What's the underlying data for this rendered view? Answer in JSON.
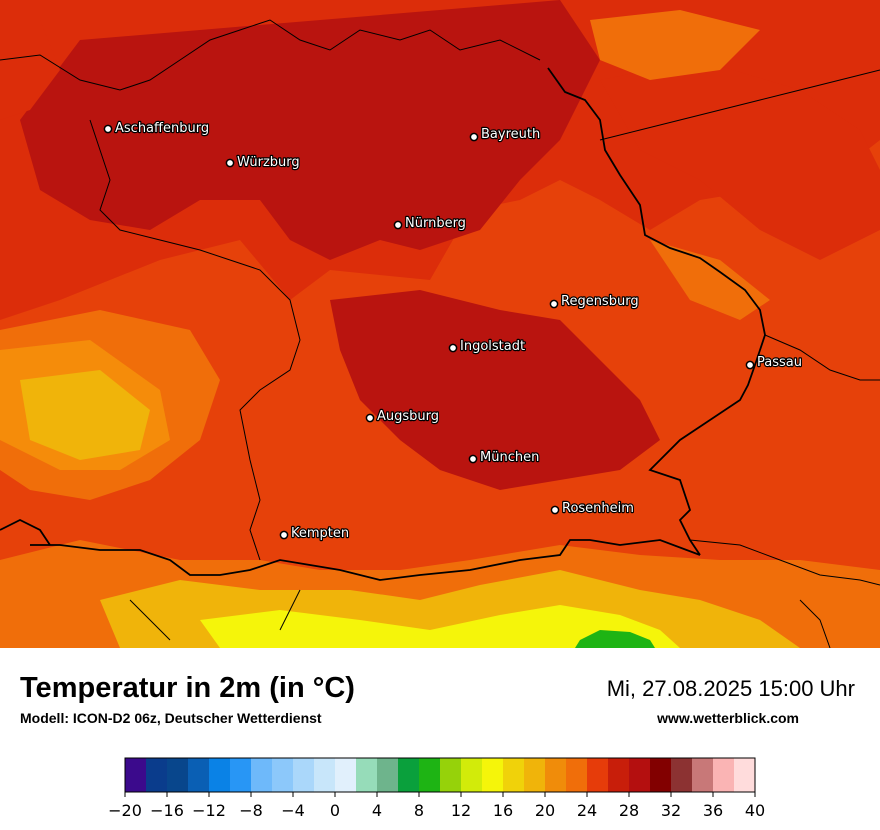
{
  "map": {
    "cities": [
      {
        "name": "Aschaffenburg"
      },
      {
        "name": "Würzburg"
      },
      {
        "name": "Bayreuth"
      },
      {
        "name": "Nürnberg"
      },
      {
        "name": "Regensburg"
      },
      {
        "name": "Ingolstadt"
      },
      {
        "name": "Passau"
      },
      {
        "name": "Augsburg"
      },
      {
        "name": "München"
      },
      {
        "name": "Rosenheim"
      },
      {
        "name": "Kempten"
      }
    ]
  },
  "footer": {
    "title": "Temperatur in 2m (in °C)",
    "subtitle": "Modell: ICON-D2 06z, Deutscher Wetterdienst",
    "datetime": "Mi, 27.08.2025 15:00 Uhr",
    "website": "www.wetterblick.com"
  },
  "legend": {
    "min": -20,
    "max": 40,
    "colors": [
      "#3b0a8c",
      "#0a3c8c",
      "#08468c",
      "#0a5fb4",
      "#0a82e6",
      "#2896f5",
      "#6eb9fa",
      "#8cc8fa",
      "#aad7fa",
      "#c8e6fa",
      "#e1f0fc",
      "#96dcb9",
      "#6eb48c",
      "#0aa03c",
      "#1eb414",
      "#96d20a",
      "#d2eb0a",
      "#f5f50a",
      "#f0d20a",
      "#f0b40a",
      "#f08c0a",
      "#f06e0a",
      "#e63c0a",
      "#c81e0a",
      "#b40f0f",
      "#820000",
      "#8c3232",
      "#c87878",
      "#fab4b4",
      "#ffdcdc"
    ],
    "ticks": [
      "−20",
      "−16",
      "−12",
      "−8",
      "−4",
      "0",
      "4",
      "8",
      "12",
      "16",
      "20",
      "24",
      "28",
      "32",
      "36",
      "40"
    ]
  },
  "colors": {
    "deep_red": "#b9140f",
    "red": "#dc2d0a",
    "orange_red": "#e6410a",
    "orange": "#f06e0a",
    "light_orange": "#f58c0a",
    "amber": "#f0b40a",
    "yellow": "#f5f50a",
    "green": "#1eb414"
  }
}
